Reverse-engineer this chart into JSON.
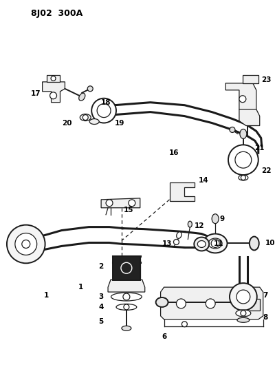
{
  "title": "8J02  300A",
  "bg_color": "#ffffff",
  "line_color": "#1a1a1a",
  "fig_width": 4.0,
  "fig_height": 5.33,
  "dpi": 100
}
